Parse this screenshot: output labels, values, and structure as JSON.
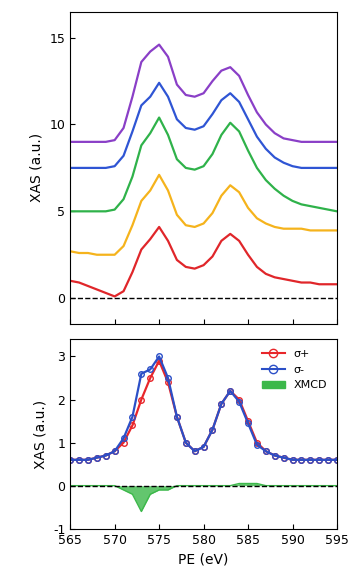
{
  "chart_data": [
    {
      "type": "line",
      "ylabel": "XAS (a.u.)",
      "x": [
        565,
        566,
        567,
        568,
        569,
        570,
        571,
        572,
        573,
        574,
        575,
        576,
        577,
        578,
        579,
        580,
        581,
        582,
        583,
        584,
        585,
        586,
        587,
        588,
        589,
        590,
        591,
        592,
        593,
        594,
        595
      ],
      "xlim": [
        565,
        595
      ],
      "xticks": [
        565,
        570,
        575,
        580,
        585,
        590,
        595
      ],
      "ylim": [
        -1.5,
        16.5
      ],
      "yticks": [
        0,
        5,
        10,
        15
      ],
      "tick_labels": "y",
      "reference_line": 0,
      "series": [
        {
          "color": "#8a3fc7",
          "values": [
            9.0,
            9.0,
            9.0,
            9.0,
            9.0,
            9.1,
            9.8,
            11.6,
            13.6,
            14.2,
            14.6,
            13.9,
            12.3,
            11.7,
            11.6,
            11.8,
            12.5,
            13.1,
            13.3,
            12.8,
            11.7,
            10.7,
            10.0,
            9.5,
            9.2,
            9.1,
            9.0,
            9.0,
            9.0,
            9.0,
            9.0
          ]
        },
        {
          "color": "#2f55d4",
          "values": [
            7.5,
            7.5,
            7.5,
            7.5,
            7.5,
            7.6,
            8.2,
            9.6,
            11.1,
            11.6,
            12.4,
            11.6,
            10.3,
            9.8,
            9.7,
            9.9,
            10.6,
            11.4,
            11.8,
            11.3,
            10.3,
            9.3,
            8.6,
            8.1,
            7.8,
            7.6,
            7.5,
            7.5,
            7.5,
            7.5,
            7.5
          ]
        },
        {
          "color": "#2fb24a",
          "values": [
            5.0,
            5.0,
            5.0,
            5.0,
            5.0,
            5.1,
            5.7,
            7.0,
            8.8,
            9.5,
            10.4,
            9.4,
            8.0,
            7.5,
            7.4,
            7.6,
            8.3,
            9.4,
            10.1,
            9.6,
            8.5,
            7.5,
            6.8,
            6.3,
            5.9,
            5.6,
            5.4,
            5.3,
            5.2,
            5.1,
            5.0
          ]
        },
        {
          "color": "#f5b31c",
          "values": [
            2.7,
            2.6,
            2.6,
            2.5,
            2.5,
            2.5,
            3.0,
            4.2,
            5.6,
            6.2,
            7.1,
            6.2,
            4.8,
            4.2,
            4.1,
            4.3,
            4.9,
            5.9,
            6.5,
            6.1,
            5.2,
            4.6,
            4.3,
            4.1,
            4.0,
            4.0,
            4.0,
            3.9,
            3.9,
            3.9,
            3.9
          ]
        },
        {
          "color": "#e0262a",
          "values": [
            1.0,
            0.9,
            0.7,
            0.5,
            0.3,
            0.1,
            0.4,
            1.5,
            2.8,
            3.4,
            4.1,
            3.3,
            2.2,
            1.8,
            1.7,
            1.9,
            2.4,
            3.3,
            3.7,
            3.3,
            2.5,
            1.8,
            1.4,
            1.2,
            1.1,
            1.0,
            0.9,
            0.9,
            0.8,
            0.8,
            0.8
          ]
        }
      ]
    },
    {
      "type": "line",
      "xlabel": "PE (eV)",
      "ylabel": "XAS (a.u.)",
      "x": [
        565,
        566,
        567,
        568,
        569,
        570,
        571,
        572,
        573,
        574,
        575,
        576,
        577,
        578,
        579,
        580,
        581,
        582,
        583,
        584,
        585,
        586,
        587,
        588,
        589,
        590,
        591,
        592,
        593,
        594,
        595
      ],
      "xlim": [
        565,
        595
      ],
      "xticks": [
        565,
        570,
        575,
        580,
        585,
        590,
        595
      ],
      "ylim": [
        -1,
        3.4
      ],
      "yticks": [
        -1,
        0,
        1,
        2,
        3
      ],
      "reference_line": 0,
      "legend": "upper right",
      "series": [
        {
          "name": "σ+",
          "type": "line",
          "marker": "o",
          "color": "#e8262a",
          "values": [
            0.6,
            0.6,
            0.6,
            0.65,
            0.7,
            0.8,
            1.0,
            1.4,
            2.0,
            2.5,
            2.9,
            2.4,
            1.6,
            1.0,
            0.8,
            0.9,
            1.3,
            1.9,
            2.2,
            2.0,
            1.5,
            1.0,
            0.8,
            0.7,
            0.65,
            0.6,
            0.6,
            0.6,
            0.6,
            0.6,
            0.6
          ]
        },
        {
          "name": "σ-",
          "type": "line",
          "marker": "o",
          "color": "#2b4fc7",
          "values": [
            0.6,
            0.6,
            0.6,
            0.65,
            0.7,
            0.8,
            1.1,
            1.6,
            2.6,
            2.7,
            3.0,
            2.5,
            1.6,
            1.0,
            0.8,
            0.9,
            1.3,
            1.9,
            2.2,
            1.95,
            1.45,
            0.95,
            0.8,
            0.7,
            0.65,
            0.6,
            0.6,
            0.6,
            0.6,
            0.6,
            0.6
          ]
        },
        {
          "name": "XMCD",
          "type": "area",
          "color": "#3cb84a",
          "values": [
            0,
            0,
            0,
            0,
            0,
            0,
            -0.1,
            -0.2,
            -0.6,
            -0.2,
            -0.1,
            -0.1,
            0,
            0,
            0,
            0,
            0,
            0,
            0,
            0.05,
            0.05,
            0.05,
            0,
            0,
            0,
            0,
            0,
            0,
            0,
            0,
            0
          ]
        }
      ]
    }
  ]
}
